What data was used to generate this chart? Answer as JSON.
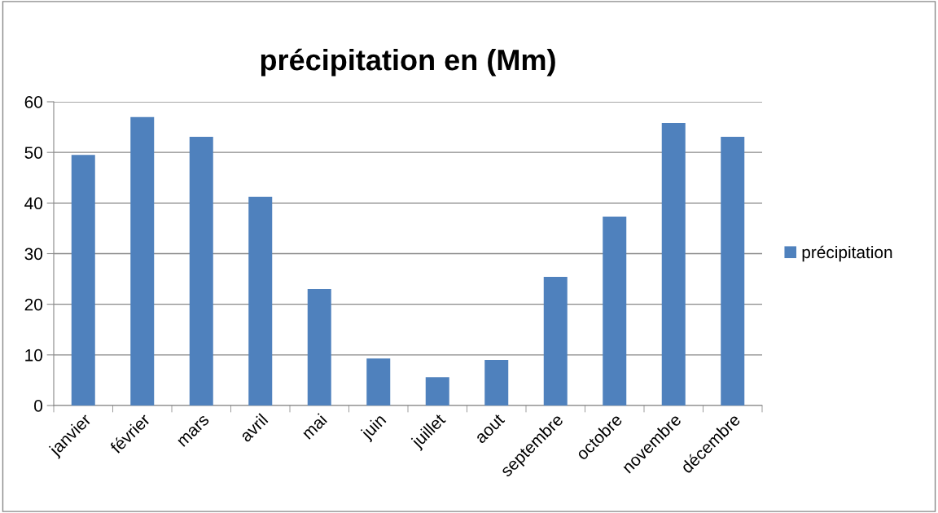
{
  "chart_data": {
    "type": "bar",
    "title": "précipitation en (Mm)",
    "categories": [
      "janvier",
      "février",
      "mars",
      "avril",
      "mai",
      "juin",
      "juillet",
      "aout",
      "septembre",
      "octobre",
      "novembre",
      "décembre"
    ],
    "series": [
      {
        "name": "précipitation",
        "color": "#4f81bd",
        "values": [
          49.5,
          57,
          53.1,
          41.2,
          23,
          9.3,
          5.6,
          9,
          25.4,
          37.3,
          55.8,
          53.1
        ]
      }
    ],
    "ylim": [
      0,
      60
    ],
    "yticks": [
      0,
      10,
      20,
      30,
      40,
      50,
      60
    ],
    "grid": "y",
    "legend": "right"
  }
}
